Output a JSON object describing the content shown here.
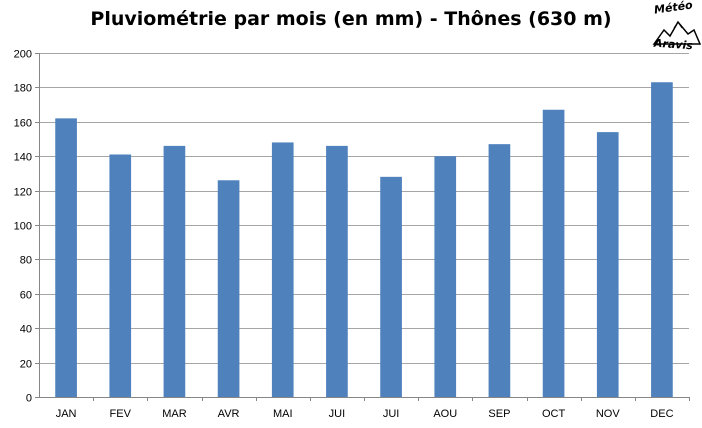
{
  "chart_data": {
    "type": "bar",
    "title": "Pluviométrie par mois (en mm) - Thônes (630 m)",
    "categories": [
      "JAN",
      "FEV",
      "MAR",
      "AVR",
      "MAI",
      "JUI",
      "JUI",
      "AOU",
      "SEP",
      "OCT",
      "NOV",
      "DEC"
    ],
    "values": [
      162,
      141,
      146,
      126,
      148,
      146,
      128,
      140,
      147,
      167,
      154,
      183
    ],
    "ylim": [
      0,
      200
    ],
    "ytick_step": 20,
    "yticks": [
      "0",
      "20",
      "40",
      "60",
      "80",
      "100",
      "120",
      "140",
      "160",
      "180",
      "200"
    ],
    "grid": true,
    "bar_color": "#4f81bd"
  },
  "logo": {
    "line1": "Météo",
    "line2": "Aravis"
  }
}
